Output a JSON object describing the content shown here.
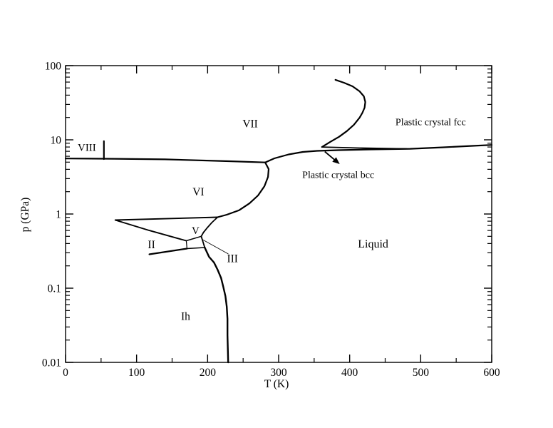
{
  "figure": {
    "background": "#ffffff",
    "line_color": "#000000",
    "description": "Pressure-temperature phase diagram of water with log pressure axis"
  },
  "chart_data": {
    "type": "line",
    "title": "",
    "xlabel": "T (K)",
    "ylabel": "p (GPa)",
    "x_axis": {
      "min": 0,
      "max": 600,
      "scale": "linear",
      "major_ticks": [
        0,
        100,
        200,
        300,
        400,
        500,
        600
      ],
      "major_tick_labels": [
        "0",
        "100",
        "200",
        "300",
        "400",
        "500",
        "600"
      ],
      "minor_ticks": [
        50,
        150,
        250,
        350,
        450,
        550
      ]
    },
    "y_axis": {
      "min": 0.01,
      "max": 100,
      "scale": "log",
      "major_ticks": [
        0.01,
        0.1,
        1,
        10,
        100
      ],
      "major_tick_labels": [
        "0.01",
        "0.1",
        "1",
        "10",
        "100"
      ]
    },
    "phase_labels": [
      {
        "id": "viii",
        "text": "VIII",
        "T": 30,
        "p": 7.9,
        "font_px": 15
      },
      {
        "id": "vii",
        "text": "VII",
        "T": 260,
        "p": 16.6,
        "font_px": 15.5
      },
      {
        "id": "vi",
        "text": "VI",
        "T": 187,
        "p": 2.0,
        "font_px": 15.5
      },
      {
        "id": "v",
        "text": "V",
        "T": 183,
        "p": 0.6,
        "font_px": 15
      },
      {
        "id": "ii",
        "text": "II",
        "T": 121,
        "p": 0.39,
        "font_px": 15.5
      },
      {
        "id": "iii",
        "text": "III",
        "T": 235,
        "p": 0.253,
        "font_px": 15.5
      },
      {
        "id": "ih",
        "text": "Ih",
        "T": 169,
        "p": 0.042,
        "font_px": 15.5
      },
      {
        "id": "liquid",
        "text": "Liquid",
        "T": 433,
        "p": 0.4,
        "font_px": 16
      },
      {
        "id": "plastic-fcc",
        "text": "Plastic crystal fcc",
        "T": 514,
        "p": 17.4,
        "font_px": 14
      },
      {
        "id": "plastic-bcc",
        "text": "Plastic crystal bcc",
        "T": 384,
        "p": 3.4,
        "font_px": 14
      }
    ],
    "boundaries": [
      {
        "name": "viii-vii-boundary",
        "width": 2.2,
        "points": [
          [
            0,
            5.6
          ],
          [
            70,
            5.55
          ],
          [
            140,
            5.45
          ],
          [
            230,
            5.15
          ],
          [
            281,
            4.96
          ]
        ]
      },
      {
        "name": "viii-vii-tick",
        "width": 2.2,
        "points": [
          [
            54,
            9.6
          ],
          [
            54,
            5.5
          ]
        ]
      },
      {
        "name": "melting-line-vii-bcc-liquid",
        "width": 2.2,
        "points": [
          [
            281,
            4.96
          ],
          [
            294,
            5.62
          ],
          [
            314,
            6.35
          ],
          [
            334,
            6.87
          ],
          [
            354,
            7.09
          ],
          [
            384,
            7.25
          ],
          [
            429,
            7.41
          ],
          [
            485,
            7.57
          ],
          [
            530,
            7.9
          ],
          [
            570,
            8.27
          ],
          [
            600,
            8.52
          ]
        ]
      },
      {
        "name": "bcc-fcc-upper-line",
        "width": 1.8,
        "points": [
          [
            361,
            8.0
          ],
          [
            414,
            7.76
          ],
          [
            480,
            7.57
          ]
        ]
      },
      {
        "name": "vii-fcc-hook",
        "width": 2.2,
        "points": [
          [
            380,
            64.3
          ],
          [
            392,
            58.8
          ],
          [
            404,
            52.6
          ],
          [
            414,
            45.1
          ],
          [
            420,
            38.6
          ],
          [
            422,
            32.3
          ],
          [
            421,
            27.1
          ],
          [
            418,
            23.2
          ],
          [
            414,
            19.9
          ],
          [
            406,
            15.95
          ],
          [
            396,
            13.1
          ],
          [
            385,
            10.97
          ],
          [
            373,
            9.43
          ],
          [
            361,
            8.0
          ]
        ]
      },
      {
        "name": "vi-liquid",
        "width": 2.2,
        "points": [
          [
            281,
            4.96
          ],
          [
            286,
            4.03
          ],
          [
            285,
            3.16
          ],
          [
            280,
            2.37
          ],
          [
            271,
            1.78
          ],
          [
            259,
            1.39
          ],
          [
            244,
            1.12
          ],
          [
            227,
            0.978
          ],
          [
            214,
            0.905
          ]
        ]
      },
      {
        "name": "vi-v-line",
        "width": 1.9,
        "points": [
          [
            70,
            0.828
          ],
          [
            214,
            0.905
          ]
        ]
      },
      {
        "name": "ii-v-slant",
        "width": 1.9,
        "points": [
          [
            70,
            0.828
          ],
          [
            118,
            0.6
          ],
          [
            170,
            0.436
          ]
        ]
      },
      {
        "name": "ii-bottom-line",
        "width": 2.2,
        "points": [
          [
            118,
            0.286
          ],
          [
            171,
            0.342
          ]
        ]
      },
      {
        "name": "v-liquid",
        "width": 1.8,
        "points": [
          [
            214,
            0.905
          ],
          [
            206,
            0.767
          ],
          [
            199,
            0.643
          ],
          [
            194,
            0.562
          ],
          [
            191,
            0.5
          ]
        ]
      },
      {
        "name": "iii-top-edge",
        "width": 1.5,
        "points": [
          [
            170,
            0.436
          ],
          [
            191,
            0.5
          ]
        ]
      },
      {
        "name": "iii-right-edge",
        "width": 1.8,
        "points": [
          [
            191,
            0.5
          ],
          [
            194,
            0.404
          ],
          [
            196,
            0.353
          ]
        ]
      },
      {
        "name": "iii-bottom-edge",
        "width": 1.5,
        "points": [
          [
            196,
            0.353
          ],
          [
            171,
            0.342
          ]
        ]
      },
      {
        "name": "iii-left-edge",
        "width": 1.2,
        "points": [
          [
            171,
            0.342
          ],
          [
            170,
            0.436
          ]
        ]
      },
      {
        "name": "ih-liquid-melting",
        "width": 2.4,
        "points": [
          [
            196,
            0.353
          ],
          [
            202,
            0.265
          ],
          [
            209,
            0.222
          ],
          [
            214,
            0.178
          ],
          [
            219,
            0.1365
          ],
          [
            222,
            0.1045
          ],
          [
            225,
            0.0784
          ],
          [
            227,
            0.0562
          ],
          [
            228,
            0.0386
          ],
          [
            228,
            0.0232
          ],
          [
            229,
            0.01
          ]
        ]
      },
      {
        "name": "iii-leader-line",
        "width": 0.8,
        "points": [
          [
            193,
            0.451
          ],
          [
            229,
            0.29
          ]
        ]
      }
    ],
    "arrow": {
      "name": "plastic-bcc-arrow",
      "from": [
        365,
        6.94
      ],
      "to": [
        386,
        4.71
      ]
    },
    "layout": {
      "grid": false,
      "legend": "none",
      "tick_direction": "in"
    }
  }
}
